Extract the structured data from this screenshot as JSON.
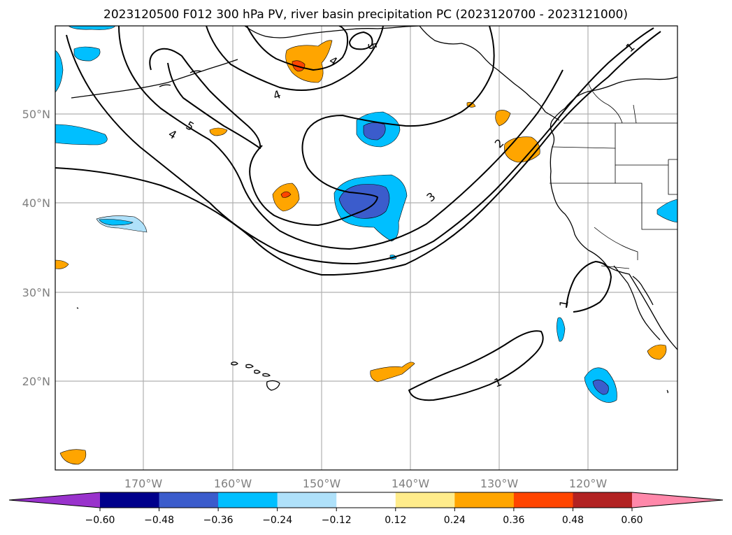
{
  "title": "2023120500 F012 300 hPa PV, river basin precipitation PC (2023120700 - 2023121000)",
  "map": {
    "lat_labels": [
      "50°N",
      "40°N",
      "30°N",
      "20°N"
    ],
    "lon_labels": [
      "170°W",
      "160°W",
      "150°W",
      "140°W",
      "130°W",
      "120°W"
    ]
  },
  "pv_contour_labels": [
    "4",
    "5",
    "4",
    "5",
    "4",
    "3",
    "2",
    "1",
    "1",
    "1"
  ],
  "colorbar": {
    "ticks": [
      "−0.60",
      "−0.48",
      "−0.36",
      "−0.24",
      "−0.12",
      "0.12",
      "0.24",
      "0.36",
      "0.48",
      "0.60"
    ],
    "colors": [
      "#9932cc",
      "#00008b",
      "#3b5ccc",
      "#00bfff",
      "#afe1fa",
      "#ffffff",
      "#ffec8b",
      "#ffa500",
      "#ff4500",
      "#b22222",
      "#ff88aa"
    ]
  },
  "chart_data": {
    "type": "heatmap",
    "title": "2023120500 F012 300 hPa PV, river basin precipitation PC (2023120700 - 2023121000)",
    "xlabel": "",
    "ylabel": "",
    "x_ticks": [
      "170°W",
      "160°W",
      "150°W",
      "140°W",
      "130°W",
      "120°W"
    ],
    "y_ticks": [
      "50°N",
      "40°N",
      "30°N",
      "20°N"
    ],
    "colorbar_levels": [
      -0.6,
      -0.48,
      -0.36,
      -0.24,
      -0.12,
      0.12,
      0.24,
      0.36,
      0.48,
      0.6
    ],
    "contour_levels_labeled": [
      1,
      2,
      3,
      4,
      5
    ],
    "grid": true,
    "colorbar_placement": "bottom"
  }
}
